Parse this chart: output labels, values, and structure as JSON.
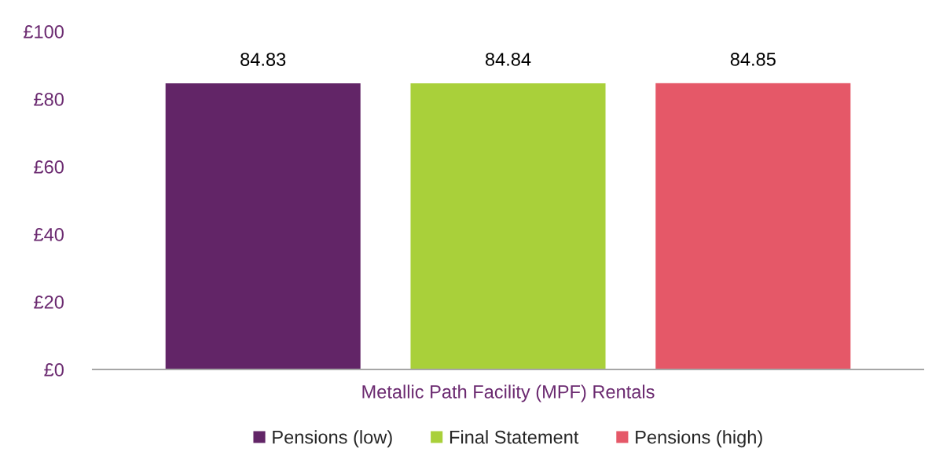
{
  "chart_data": {
    "type": "bar",
    "categories": [
      "Metallic Path Facility (MPF) Rentals"
    ],
    "series": [
      {
        "name": "Pensions (low)",
        "color": "#622567",
        "values": [
          84.83
        ]
      },
      {
        "name": "Final Statement",
        "color": "#a9d03a",
        "values": [
          84.84
        ]
      },
      {
        "name": "Pensions (high)",
        "color": "#e55868",
        "values": [
          84.85
        ]
      }
    ],
    "ylim": [
      0,
      100
    ],
    "yticks": [
      {
        "value": 0,
        "label": "£0"
      },
      {
        "value": 20,
        "label": "£20"
      },
      {
        "value": 40,
        "label": "£40"
      },
      {
        "value": 60,
        "label": "£60"
      },
      {
        "value": 80,
        "label": "£80"
      },
      {
        "value": 100,
        "label": "£100"
      }
    ],
    "data_labels": true,
    "grid": false,
    "legend": "bottom"
  }
}
